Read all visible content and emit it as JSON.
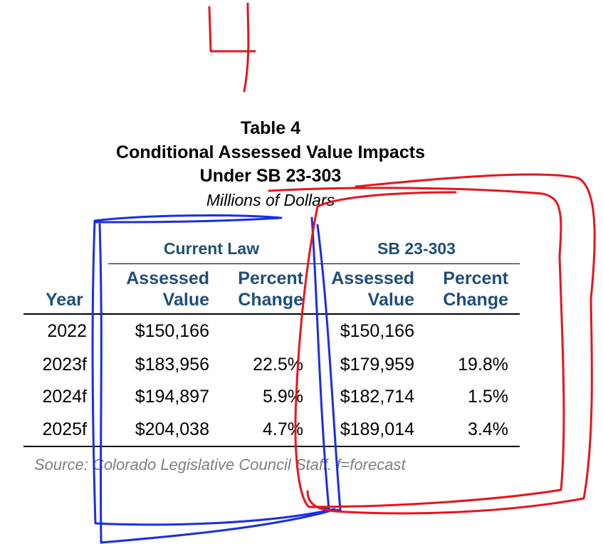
{
  "annotation": {
    "handwritten_number": "4"
  },
  "table": {
    "label": "Table 4",
    "title_line1": "Conditional Assessed Value Impacts",
    "title_line2": "Under SB 23-303",
    "units": "Millions of Dollars",
    "group_headers": [
      "Current Law",
      "SB 23-303"
    ],
    "column_headers": {
      "year": "Year",
      "cl_value_1": "Assessed",
      "cl_value_2": "Value",
      "cl_pct_1": "Percent",
      "cl_pct_2": "Change",
      "sb_value_1": "Assessed",
      "sb_value_2": "Value",
      "sb_pct_1": "Percent",
      "sb_pct_2": "Change"
    },
    "rows": [
      {
        "year": "2022",
        "cl_value": "$150,166",
        "cl_pct": "",
        "sb_value": "$150,166",
        "sb_pct": ""
      },
      {
        "year": "2023f",
        "cl_value": "$183,956",
        "cl_pct": "22.5%",
        "sb_value": "$179,959",
        "sb_pct": "19.8%"
      },
      {
        "year": "2024f",
        "cl_value": "$194,897",
        "cl_pct": "5.9%",
        "sb_value": "$182,714",
        "sb_pct": "1.5%"
      },
      {
        "year": "2025f",
        "cl_value": "$204,038",
        "cl_pct": "4.7%",
        "sb_value": "$189,014",
        "sb_pct": "3.4%"
      }
    ],
    "source": "Source: Colorado Legislative Council Staff.  f=forecast"
  },
  "colors": {
    "header_blue": "#1f4e79",
    "annotation_red": "#e8141c",
    "annotation_blue": "#1a2fe0",
    "source_gray": "#808080"
  }
}
